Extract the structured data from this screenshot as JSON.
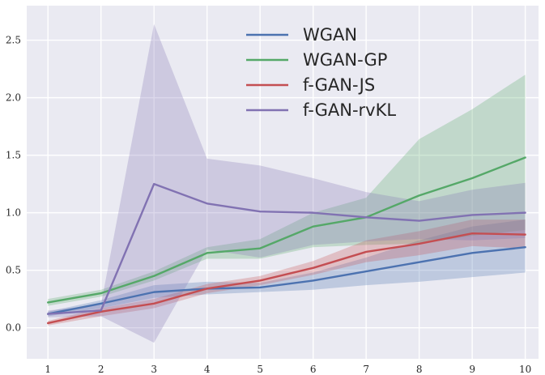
{
  "chart_data": {
    "type": "line",
    "title": "",
    "xlabel": "",
    "ylabel": "",
    "grid": true,
    "legend_position": "top-center",
    "x": [
      1,
      2,
      3,
      4,
      5,
      6,
      7,
      8,
      9,
      10
    ],
    "xlim": [
      0.6,
      10.25
    ],
    "ylim": [
      -0.27,
      2.8
    ],
    "xticks": [
      1,
      2,
      3,
      4,
      5,
      6,
      7,
      8,
      9,
      10
    ],
    "xtick_labels": [
      "1",
      "2",
      "3",
      "4",
      "5",
      "6",
      "7",
      "8",
      "9",
      "10"
    ],
    "yticks": [
      0.0,
      0.5,
      1.0,
      1.5,
      2.0,
      2.5
    ],
    "ytick_labels": [
      "0.0",
      "0.5",
      "1.0",
      "1.5",
      "2.0",
      "2.5"
    ],
    "series": [
      {
        "name": "WGAN",
        "color": "#4c72b0",
        "values": [
          0.12,
          0.21,
          0.31,
          0.34,
          0.35,
          0.41,
          0.49,
          0.57,
          0.65,
          0.7
        ],
        "lower": [
          0.1,
          0.17,
          0.26,
          0.29,
          0.31,
          0.33,
          0.37,
          0.4,
          0.44,
          0.48
        ],
        "upper": [
          0.14,
          0.24,
          0.37,
          0.4,
          0.39,
          0.48,
          0.61,
          0.76,
          0.88,
          0.94
        ]
      },
      {
        "name": "WGAN-GP",
        "color": "#55a868",
        "values": [
          0.22,
          0.3,
          0.45,
          0.65,
          0.69,
          0.88,
          0.96,
          1.15,
          1.3,
          1.48
        ],
        "lower": [
          0.19,
          0.27,
          0.41,
          0.6,
          0.6,
          0.7,
          0.72,
          0.73,
          0.8,
          0.85
        ],
        "upper": [
          0.25,
          0.33,
          0.49,
          0.7,
          0.77,
          1.0,
          1.13,
          1.64,
          1.9,
          2.2
        ]
      },
      {
        "name": "f-GAN-JS",
        "color": "#c44e52",
        "values": [
          0.04,
          0.14,
          0.21,
          0.34,
          0.41,
          0.52,
          0.66,
          0.73,
          0.82,
          0.81
        ],
        "lower": [
          0.02,
          0.1,
          0.17,
          0.3,
          0.37,
          0.46,
          0.57,
          0.63,
          0.71,
          0.69
        ],
        "upper": [
          0.06,
          0.17,
          0.25,
          0.38,
          0.45,
          0.58,
          0.76,
          0.84,
          0.94,
          0.94
        ]
      },
      {
        "name": "f-GAN-rvKL",
        "color": "#8172b2",
        "values": [
          0.12,
          0.15,
          1.25,
          1.08,
          1.01,
          1.0,
          0.96,
          0.93,
          0.98,
          1.0
        ],
        "lower": [
          0.09,
          0.1,
          -0.13,
          0.68,
          0.61,
          0.72,
          0.75,
          0.77,
          0.76,
          0.78
        ],
        "upper": [
          0.15,
          0.2,
          2.64,
          1.47,
          1.41,
          1.3,
          1.18,
          1.1,
          1.2,
          1.26
        ]
      }
    ]
  },
  "colors": {
    "plot_background": "#eaeaf2",
    "grid": "#ffffff"
  }
}
